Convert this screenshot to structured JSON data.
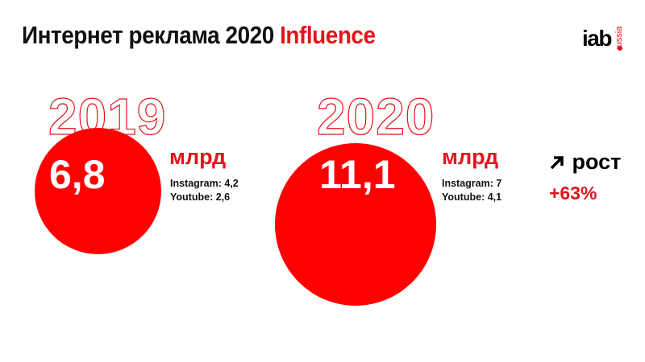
{
  "title": {
    "main": "Интернет реклама 2020",
    "accent": "Influence"
  },
  "logo": {
    "text": "iab",
    "sub": "russia"
  },
  "colors": {
    "accent": "#e3141b",
    "circle": "#ff0000"
  },
  "periods": [
    {
      "year": "2019",
      "total": "6,8",
      "unit": "млрд",
      "instagram": "Instagram: 4,2",
      "youtube": "Youtube: 2,6"
    },
    {
      "year": "2020",
      "total": "11,1",
      "unit": "млрд",
      "instagram": "Instagram: 7",
      "youtube": "Youtube: 4,1"
    }
  ],
  "growth": {
    "icon": "arrow-up-right-icon",
    "label": "рост",
    "value": "+63%"
  }
}
